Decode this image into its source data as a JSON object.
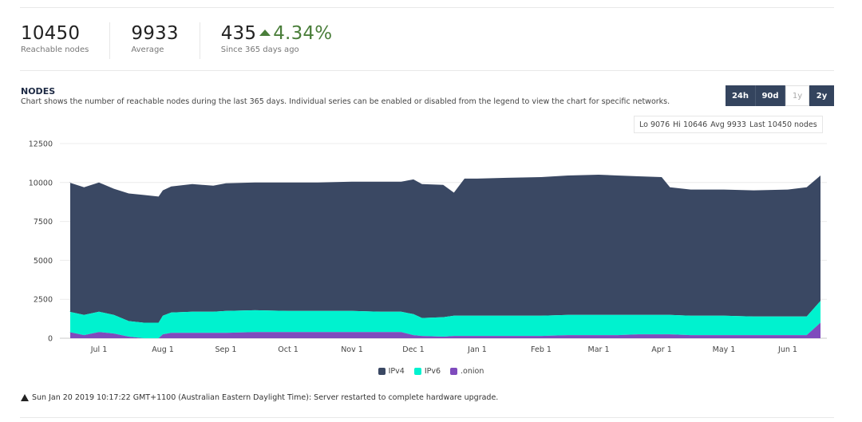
{
  "stats": [
    {
      "value": "10450",
      "label": "Reachable nodes"
    },
    {
      "value": "9933",
      "label": "Average"
    },
    {
      "value": "435",
      "change": "4.34%",
      "label": "Since 365 days ago"
    }
  ],
  "section": {
    "title": "NODES",
    "description": "Chart shows the number of reachable nodes during the last 365 days. Individual series can be enabled or disabled from the legend to view the chart for specific networks."
  },
  "range_buttons": [
    {
      "label": "24h",
      "active": true
    },
    {
      "label": "90d",
      "active": true
    },
    {
      "label": "1y",
      "active": false
    },
    {
      "label": "2y",
      "active": true
    }
  ],
  "summary": {
    "lo": "Lo 9076",
    "hi": "Hi 10646",
    "avg": "Avg 9933",
    "last": "Last 10450 nodes"
  },
  "colors": {
    "ipv4": "#3a4863",
    "ipv6": "#00f2cf",
    "onion": "#7f4bbd",
    "accent": "#34445e",
    "change": "#4a7e3a"
  },
  "chart_data": {
    "type": "area",
    "stacked": true,
    "x_ticks": [
      "Jul 1",
      "Aug 1",
      "Sep 1",
      "Oct 1",
      "Nov 1",
      "Dec 1",
      "Jan 1",
      "Feb 1",
      "Mar 1",
      "Apr 1",
      "May 1",
      "Jun 1"
    ],
    "y_ticks": [
      "12500",
      "10000",
      "7500",
      "5000",
      "2500",
      "0"
    ],
    "ylim": [
      0,
      12500
    ],
    "grid": true,
    "x": [
      "Jun 10",
      "Jun 17",
      "Jun 24",
      "Jul 1",
      "Jul 8",
      "Jul 15",
      "Jul 22",
      "Jul 29",
      "Aug 1",
      "Aug 5",
      "Aug 15",
      "Aug 25",
      "Sep 1",
      "Sep 15",
      "Oct 1",
      "Oct 15",
      "Nov 1",
      "Nov 15",
      "Nov 25",
      "Dec 1",
      "Dec 5",
      "Dec 15",
      "Dec 20",
      "Dec 25",
      "Jan 1",
      "Jan 15",
      "Feb 1",
      "Feb 15",
      "Mar 1",
      "Mar 10",
      "Mar 20",
      "Apr 1",
      "Apr 5",
      "Apr 15",
      "May 1",
      "May 15",
      "Jun 1",
      "Jun 10",
      "Jun 15"
    ],
    "series": [
      {
        "name": "IPv4",
        "values": [
          8300,
          8300,
          8200,
          8300,
          8100,
          8200,
          8200,
          8100,
          8050,
          8100,
          8200,
          8100,
          8200,
          8200,
          8250,
          8250,
          8300,
          8350,
          8350,
          8650,
          8600,
          8500,
          7900,
          8800,
          8800,
          8850,
          8900,
          8950,
          9000,
          8950,
          8900,
          8850,
          8200,
          8100,
          8100,
          8100,
          8150,
          8300,
          8050
        ]
      },
      {
        "name": "IPv6",
        "values": [
          1300,
          1300,
          1300,
          1300,
          1200,
          1000,
          1000,
          1000,
          1200,
          1300,
          1350,
          1350,
          1400,
          1400,
          1350,
          1350,
          1350,
          1300,
          1300,
          1350,
          1150,
          1250,
          1300,
          1300,
          1300,
          1300,
          1300,
          1300,
          1300,
          1300,
          1250,
          1250,
          1250,
          1250,
          1250,
          1200,
          1200,
          1200,
          1400
        ]
      },
      {
        "name": ".onion",
        "values": [
          400,
          400,
          200,
          400,
          300,
          100,
          0,
          0,
          250,
          350,
          350,
          350,
          350,
          400,
          400,
          400,
          400,
          400,
          400,
          200,
          150,
          100,
          150,
          150,
          150,
          150,
          150,
          200,
          200,
          200,
          250,
          250,
          250,
          200,
          200,
          200,
          200,
          200,
          1000
        ]
      }
    ]
  },
  "legend": [
    "IPv4",
    "IPv6",
    ".onion"
  ],
  "notice": "Sun Jan 20 2019 10:17:22 GMT+1100 (Australian Eastern Daylight Time): Server restarted to complete hardware upgrade."
}
